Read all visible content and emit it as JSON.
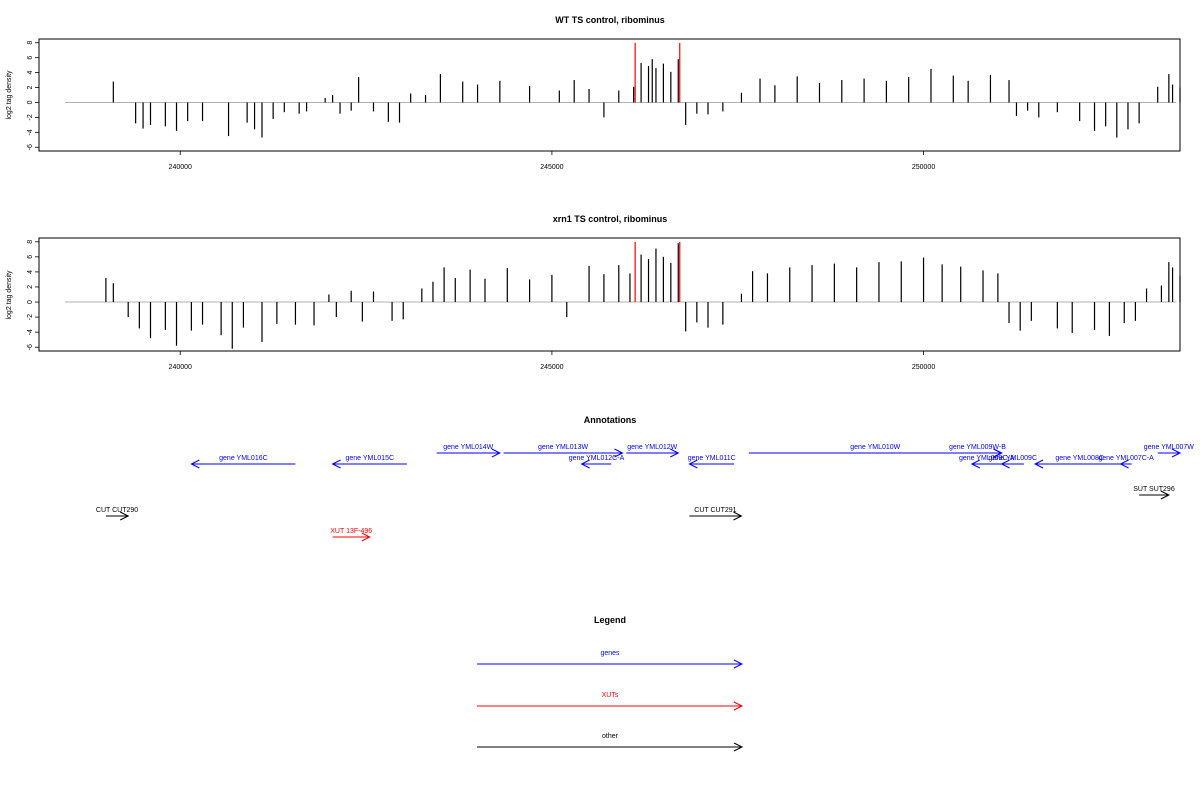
{
  "chart_data": [
    {
      "type": "bar",
      "title": "WT TS control, ribominus",
      "ylabel": "log2 tag density",
      "xlim": [
        238100,
        253450
      ],
      "ylim": [
        -6.5,
        8.5
      ],
      "yticks": [
        -6,
        -4,
        -2,
        0,
        2,
        4,
        6,
        8
      ],
      "xticks": [
        240000,
        245000,
        250000
      ],
      "xtick_labels": [
        "240000",
        "245000",
        "250000"
      ],
      "highlight_color": "#ff0000",
      "highlights": [
        246120,
        246720
      ],
      "series": [
        {
          "values": [
            [
              239100,
              2.8
            ],
            [
              239400,
              -2.8
            ],
            [
              239500,
              -3.5
            ],
            [
              239600,
              -3.0
            ],
            [
              239800,
              -3.2
            ],
            [
              239950,
              -3.8
            ],
            [
              240100,
              -2.5
            ],
            [
              240300,
              -2.5
            ],
            [
              240650,
              -4.5
            ],
            [
              240900,
              -2.7
            ],
            [
              241000,
              -3.6
            ],
            [
              241100,
              -4.7
            ],
            [
              241250,
              -2.2
            ],
            [
              241400,
              -1.3
            ],
            [
              241600,
              -1.5
            ],
            [
              241700,
              -1.2
            ],
            [
              241950,
              0.6
            ],
            [
              242050,
              1.0
            ],
            [
              242150,
              -1.5
            ],
            [
              242300,
              -1.1
            ],
            [
              242400,
              3.4
            ],
            [
              242600,
              -1.2
            ],
            [
              242800,
              -2.6
            ],
            [
              242950,
              -2.7
            ],
            [
              243100,
              1.2
            ],
            [
              243300,
              1.0
            ],
            [
              243500,
              3.8
            ],
            [
              243800,
              2.8
            ],
            [
              244000,
              2.4
            ],
            [
              244300,
              2.9
            ],
            [
              244700,
              2.2
            ],
            [
              245100,
              1.6
            ],
            [
              245300,
              3.0
            ],
            [
              245500,
              1.8
            ],
            [
              245700,
              -2.0
            ],
            [
              245900,
              1.6
            ],
            [
              246100,
              2.1
            ],
            [
              246200,
              5.3
            ],
            [
              246300,
              4.9
            ],
            [
              246350,
              5.8
            ],
            [
              246400,
              4.6
            ],
            [
              246500,
              5.2
            ],
            [
              246600,
              4.1
            ],
            [
              246700,
              5.8
            ],
            [
              246800,
              -3.0
            ],
            [
              246950,
              -1.5
            ],
            [
              247100,
              -1.6
            ],
            [
              247300,
              -1.2
            ],
            [
              247550,
              1.3
            ],
            [
              247800,
              3.2
            ],
            [
              248000,
              2.3
            ],
            [
              248300,
              3.5
            ],
            [
              248600,
              2.6
            ],
            [
              248900,
              3.0
            ],
            [
              249200,
              3.2
            ],
            [
              249500,
              2.9
            ],
            [
              249800,
              3.4
            ],
            [
              250100,
              4.5
            ],
            [
              250400,
              3.6
            ],
            [
              250600,
              2.9
            ],
            [
              250900,
              3.7
            ],
            [
              251150,
              3.0
            ],
            [
              251250,
              -1.8
            ],
            [
              251400,
              -1.1
            ],
            [
              251550,
              -2.0
            ],
            [
              251800,
              -1.3
            ],
            [
              252100,
              -2.5
            ],
            [
              252300,
              -3.8
            ],
            [
              252450,
              -3.2
            ],
            [
              252600,
              -4.7
            ],
            [
              252750,
              -3.6
            ],
            [
              252900,
              -2.8
            ],
            [
              253150,
              2.1
            ],
            [
              253300,
              3.8
            ],
            [
              253350,
              2.4
            ],
            [
              253450,
              2.0
            ]
          ]
        }
      ]
    },
    {
      "type": "bar",
      "title": "xrn1 TS control, ribominus",
      "ylabel": "log2 tag density",
      "xlim": [
        238100,
        253450
      ],
      "ylim": [
        -6.5,
        8.5
      ],
      "yticks": [
        -6,
        -4,
        -2,
        0,
        2,
        4,
        6,
        8
      ],
      "xticks": [
        240000,
        245000,
        250000
      ],
      "xtick_labels": [
        "240000",
        "245000",
        "250000"
      ],
      "highlight_color": "#ff0000",
      "highlights": [
        246120,
        246720
      ],
      "series": [
        {
          "values": [
            [
              239000,
              3.2
            ],
            [
              239100,
              2.5
            ],
            [
              239300,
              -2.0
            ],
            [
              239450,
              -3.5
            ],
            [
              239600,
              -4.8
            ],
            [
              239800,
              -3.7
            ],
            [
              239950,
              -5.8
            ],
            [
              240150,
              -3.8
            ],
            [
              240300,
              -3.0
            ],
            [
              240550,
              -4.4
            ],
            [
              240700,
              -6.2
            ],
            [
              240850,
              -3.4
            ],
            [
              241100,
              -5.3
            ],
            [
              241300,
              -2.9
            ],
            [
              241550,
              -3.0
            ],
            [
              241800,
              -3.1
            ],
            [
              242000,
              1.0
            ],
            [
              242100,
              -2.0
            ],
            [
              242300,
              1.5
            ],
            [
              242450,
              -2.6
            ],
            [
              242600,
              1.4
            ],
            [
              242850,
              -2.5
            ],
            [
              243000,
              -2.3
            ],
            [
              243250,
              1.8
            ],
            [
              243400,
              2.7
            ],
            [
              243550,
              4.6
            ],
            [
              243700,
              3.2
            ],
            [
              243900,
              4.3
            ],
            [
              244100,
              3.1
            ],
            [
              244400,
              4.5
            ],
            [
              244700,
              3.0
            ],
            [
              245000,
              3.6
            ],
            [
              245200,
              -2.0
            ],
            [
              245500,
              4.8
            ],
            [
              245700,
              3.7
            ],
            [
              245900,
              4.9
            ],
            [
              246050,
              3.8
            ],
            [
              246200,
              6.3
            ],
            [
              246300,
              5.7
            ],
            [
              246400,
              7.1
            ],
            [
              246500,
              6.0
            ],
            [
              246600,
              5.2
            ],
            [
              246700,
              7.8
            ],
            [
              246800,
              -3.9
            ],
            [
              246950,
              -2.7
            ],
            [
              247100,
              -3.4
            ],
            [
              247300,
              -3.0
            ],
            [
              247550,
              1.1
            ],
            [
              247700,
              4.1
            ],
            [
              247900,
              3.8
            ],
            [
              248200,
              4.6
            ],
            [
              248500,
              4.9
            ],
            [
              248800,
              5.1
            ],
            [
              249100,
              4.6
            ],
            [
              249400,
              5.3
            ],
            [
              249700,
              5.4
            ],
            [
              250000,
              5.9
            ],
            [
              250250,
              5.0
            ],
            [
              250500,
              4.7
            ],
            [
              250800,
              4.2
            ],
            [
              251000,
              3.8
            ],
            [
              251150,
              -2.8
            ],
            [
              251300,
              -3.8
            ],
            [
              251450,
              -2.5
            ],
            [
              251800,
              -3.5
            ],
            [
              252000,
              -4.1
            ],
            [
              252300,
              -3.7
            ],
            [
              252500,
              -4.5
            ],
            [
              252700,
              -2.8
            ],
            [
              252850,
              -2.5
            ],
            [
              253000,
              1.8
            ],
            [
              253200,
              2.2
            ],
            [
              253300,
              5.3
            ],
            [
              253350,
              4.6
            ],
            [
              253450,
              3.5
            ]
          ]
        }
      ]
    }
  ],
  "annotations": {
    "title": "Annotations",
    "gene_color": "#0000ff",
    "xut_color": "#ff0000",
    "other_color": "#000000",
    "features": [
      {
        "label": "gene YML016C",
        "start": 240150,
        "end": 241550,
        "strand": "-",
        "kind": "gene",
        "track": 1
      },
      {
        "label": "gene YML015C",
        "start": 242050,
        "end": 243050,
        "strand": "-",
        "kind": "gene",
        "track": 1
      },
      {
        "label": "gene YML014W",
        "start": 243450,
        "end": 244300,
        "strand": "+",
        "kind": "gene",
        "track": 0
      },
      {
        "label": "gene YML013W",
        "start": 244350,
        "end": 245950,
        "strand": "+",
        "kind": "gene",
        "track": 0
      },
      {
        "label": "gene YML012C-A",
        "start": 245400,
        "end": 245800,
        "strand": "-",
        "kind": "gene",
        "track": 1
      },
      {
        "label": "gene YML012W",
        "start": 246000,
        "end": 246700,
        "strand": "+",
        "kind": "gene",
        "track": 0
      },
      {
        "label": "gene YML011C",
        "start": 246850,
        "end": 247450,
        "strand": "-",
        "kind": "gene",
        "track": 1
      },
      {
        "label": "gene YML010W",
        "start": 247650,
        "end": 251050,
        "strand": "+",
        "kind": "gene",
        "track": 0
      },
      {
        "label": "gene YML009W-B",
        "start": 250400,
        "end": 251050,
        "strand": "+",
        "kind": "gene",
        "track": 0
      },
      {
        "label": "gene YML009C-A",
        "start": 250650,
        "end": 251050,
        "strand": "-",
        "kind": "gene",
        "track": 1
      },
      {
        "label": "gene YML009C",
        "start": 251050,
        "end": 251350,
        "strand": "-",
        "kind": "gene",
        "track": 1
      },
      {
        "label": "gene YML008C",
        "start": 251500,
        "end": 252700,
        "strand": "-",
        "kind": "gene",
        "track": 1
      },
      {
        "label": "gene YML007C-A",
        "start": 252650,
        "end": 252800,
        "strand": "-",
        "kind": "gene",
        "track": 1
      },
      {
        "label": "gene YML007W",
        "start": 253150,
        "end": 253450,
        "strand": "+",
        "kind": "gene",
        "track": 0
      },
      {
        "label": "SUT SUT296",
        "start": 252900,
        "end": 253300,
        "strand": "+",
        "kind": "other",
        "track": 2
      },
      {
        "label": "CUT CUT290",
        "start": 239000,
        "end": 239300,
        "strand": "+",
        "kind": "other",
        "track": 3
      },
      {
        "label": "CUT CUT291",
        "start": 246850,
        "end": 247550,
        "strand": "+",
        "kind": "other",
        "track": 3
      },
      {
        "label": "XUT 13F-496",
        "start": 242050,
        "end": 242550,
        "strand": "+",
        "kind": "xut",
        "track": 4
      }
    ]
  },
  "legend": {
    "title": "Legend",
    "items": [
      {
        "label": "genes",
        "color": "#0000ff"
      },
      {
        "label": "XUTs",
        "color": "#ff0000"
      },
      {
        "label": "other",
        "color": "#000000"
      }
    ]
  }
}
